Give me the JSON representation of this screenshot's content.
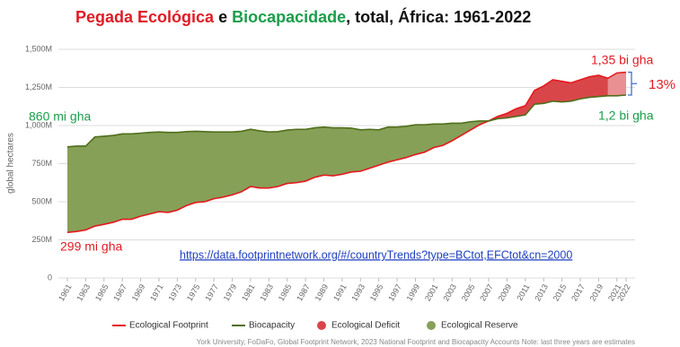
{
  "chart_data": {
    "type": "area",
    "title": [
      "Pegada Ecológica",
      " e ",
      "Biocapacidade",
      ", total, África: 1961-2022"
    ],
    "y_label": "global hectares",
    "x": [
      1961,
      1962,
      1963,
      1964,
      1965,
      1966,
      1967,
      1968,
      1969,
      1970,
      1971,
      1972,
      1973,
      1974,
      1975,
      1976,
      1977,
      1978,
      1979,
      1980,
      1981,
      1982,
      1983,
      1984,
      1985,
      1986,
      1987,
      1988,
      1989,
      1990,
      1991,
      1992,
      1993,
      1994,
      1995,
      1996,
      1997,
      1998,
      1999,
      2000,
      2001,
      2002,
      2003,
      2004,
      2005,
      2006,
      2007,
      2008,
      2009,
      2010,
      2011,
      2012,
      2013,
      2014,
      2015,
      2016,
      2017,
      2018,
      2019,
      2020,
      2021,
      2022
    ],
    "xlim": [
      1961,
      2022
    ],
    "xticks": [
      1961,
      1963,
      1965,
      1967,
      1969,
      1971,
      1973,
      1975,
      1977,
      1979,
      1981,
      1983,
      1985,
      1987,
      1989,
      1991,
      1993,
      1995,
      1997,
      1999,
      2001,
      2003,
      2005,
      2007,
      2009,
      2011,
      2013,
      2015,
      2017,
      2019,
      2021,
      2022
    ],
    "ylim": [
      0,
      1500
    ],
    "yticks": [
      0,
      {
        "value": 250,
        "label": "250M"
      },
      {
        "value": 500,
        "label": "500M"
      },
      {
        "value": 750,
        "label": "750M"
      },
      {
        "value": 1000,
        "label": "1,000M"
      },
      {
        "value": 1250,
        "label": "1,250M"
      },
      {
        "value": 1500,
        "label": "1,500M"
      }
    ],
    "grid": true,
    "series": [
      {
        "name": "Ecological Footprint",
        "color": "#e3191c",
        "values": [
          299,
          305,
          315,
          340,
          352,
          365,
          385,
          385,
          405,
          420,
          435,
          430,
          445,
          475,
          495,
          500,
          520,
          530,
          545,
          565,
          600,
          590,
          590,
          600,
          620,
          625,
          635,
          660,
          675,
          670,
          680,
          695,
          700,
          720,
          740,
          760,
          775,
          790,
          810,
          825,
          855,
          870,
          900,
          935,
          970,
          1005,
          1030,
          1060,
          1080,
          1110,
          1130,
          1230,
          1260,
          1300,
          1290,
          1280,
          1300,
          1320,
          1330,
          1310,
          1345,
          1350
        ]
      },
      {
        "name": "Biocapacity",
        "color": "#4f6e1a",
        "values": [
          860,
          865,
          865,
          925,
          930,
          935,
          945,
          945,
          950,
          955,
          958,
          955,
          955,
          960,
          962,
          960,
          958,
          958,
          958,
          962,
          975,
          965,
          958,
          960,
          970,
          975,
          975,
          985,
          990,
          985,
          985,
          983,
          972,
          975,
          972,
          990,
          990,
          995,
          1005,
          1005,
          1010,
          1010,
          1015,
          1015,
          1025,
          1030,
          1030,
          1045,
          1050,
          1060,
          1070,
          1140,
          1145,
          1160,
          1155,
          1160,
          1175,
          1185,
          1190,
          1195,
          1195,
          1200
        ]
      }
    ],
    "fills": [
      {
        "name": "Ecological Deficit",
        "color": "#d9464a"
      },
      {
        "name": "Ecological Reserve",
        "color": "#86a058"
      }
    ],
    "annotations": [
      "860 mi gha",
      "299 mi gha",
      "1,35 bi gha",
      "13%",
      "1,2 bi gha"
    ],
    "source_url": "https://data.footprintnetwork.org/#/countryTrends?type=BCtot,EFCtot&cn=2000",
    "note": "York University, FoDaFo, Global Footprint Network, 2023 National Footprint and Biocapacity Accounts Note: last three years are estimates"
  }
}
